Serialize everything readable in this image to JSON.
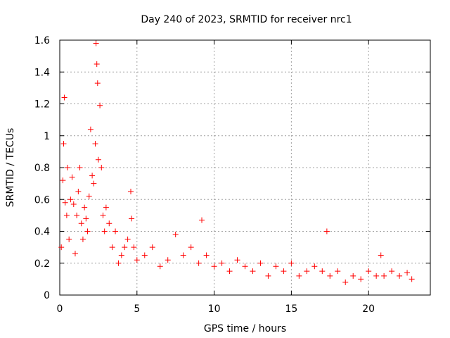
{
  "chart_data": {
    "type": "scatter",
    "title": "Day 240 of 2023, SRMTID for receiver nrc1",
    "xlabel": "GPS time / hours",
    "ylabel": "SRMTID / TECUs",
    "xlim": [
      0,
      24
    ],
    "ylim": [
      0,
      1.6
    ],
    "x_ticks": [
      0,
      5,
      10,
      15,
      20
    ],
    "y_ticks": [
      0,
      0.2,
      0.4,
      0.6,
      0.8,
      1,
      1.2,
      1.4,
      1.6
    ],
    "x_tick_labels": [
      "0",
      "5",
      "10",
      "15",
      "20"
    ],
    "y_tick_labels": [
      "0",
      "0.2",
      "0.4",
      "0.6",
      "0.8",
      "1",
      "1.2",
      "1.4",
      "1.6"
    ],
    "grid": true,
    "marker": "plus",
    "series": [
      {
        "name": "SRMTID",
        "color": "#ff0000",
        "points": [
          [
            0.1,
            0.3
          ],
          [
            0.2,
            0.72
          ],
          [
            0.25,
            0.95
          ],
          [
            0.3,
            1.24
          ],
          [
            0.35,
            0.58
          ],
          [
            0.45,
            0.5
          ],
          [
            0.5,
            0.8
          ],
          [
            0.6,
            0.35
          ],
          [
            0.7,
            0.6
          ],
          [
            0.8,
            0.74
          ],
          [
            0.9,
            0.57
          ],
          [
            1.0,
            0.26
          ],
          [
            1.1,
            0.5
          ],
          [
            1.2,
            0.65
          ],
          [
            1.3,
            0.8
          ],
          [
            1.4,
            0.45
          ],
          [
            1.5,
            0.35
          ],
          [
            1.6,
            0.55
          ],
          [
            1.7,
            0.48
          ],
          [
            1.8,
            0.4
          ],
          [
            1.9,
            0.62
          ],
          [
            2.0,
            1.04
          ],
          [
            2.1,
            0.75
          ],
          [
            2.2,
            0.7
          ],
          [
            2.3,
            0.95
          ],
          [
            2.35,
            1.58
          ],
          [
            2.4,
            1.45
          ],
          [
            2.45,
            1.33
          ],
          [
            2.5,
            0.85
          ],
          [
            2.6,
            1.19
          ],
          [
            2.7,
            0.8
          ],
          [
            2.8,
            0.5
          ],
          [
            2.9,
            0.4
          ],
          [
            3.0,
            0.55
          ],
          [
            3.2,
            0.45
          ],
          [
            3.4,
            0.3
          ],
          [
            3.6,
            0.4
          ],
          [
            3.8,
            0.2
          ],
          [
            4.0,
            0.25
          ],
          [
            4.2,
            0.3
          ],
          [
            4.4,
            0.35
          ],
          [
            4.6,
            0.65
          ],
          [
            4.65,
            0.48
          ],
          [
            4.8,
            0.3
          ],
          [
            5.0,
            0.22
          ],
          [
            5.5,
            0.25
          ],
          [
            6.0,
            0.3
          ],
          [
            6.5,
            0.18
          ],
          [
            7.0,
            0.22
          ],
          [
            7.5,
            0.38
          ],
          [
            8.0,
            0.25
          ],
          [
            8.5,
            0.3
          ],
          [
            9.0,
            0.2
          ],
          [
            9.2,
            0.47
          ],
          [
            9.5,
            0.25
          ],
          [
            10.0,
            0.18
          ],
          [
            10.5,
            0.2
          ],
          [
            11.0,
            0.15
          ],
          [
            11.5,
            0.22
          ],
          [
            12.0,
            0.18
          ],
          [
            12.5,
            0.15
          ],
          [
            13.0,
            0.2
          ],
          [
            13.5,
            0.12
          ],
          [
            14.0,
            0.18
          ],
          [
            14.5,
            0.15
          ],
          [
            15.0,
            0.2
          ],
          [
            15.5,
            0.12
          ],
          [
            16.0,
            0.15
          ],
          [
            16.5,
            0.18
          ],
          [
            17.0,
            0.15
          ],
          [
            17.3,
            0.4
          ],
          [
            17.5,
            0.12
          ],
          [
            18.0,
            0.15
          ],
          [
            18.5,
            0.08
          ],
          [
            19.0,
            0.12
          ],
          [
            19.5,
            0.1
          ],
          [
            20.0,
            0.15
          ],
          [
            20.5,
            0.12
          ],
          [
            20.8,
            0.25
          ],
          [
            21.0,
            0.12
          ],
          [
            21.5,
            0.15
          ],
          [
            22.0,
            0.12
          ],
          [
            22.5,
            0.14
          ],
          [
            22.8,
            0.1
          ]
        ]
      }
    ]
  }
}
